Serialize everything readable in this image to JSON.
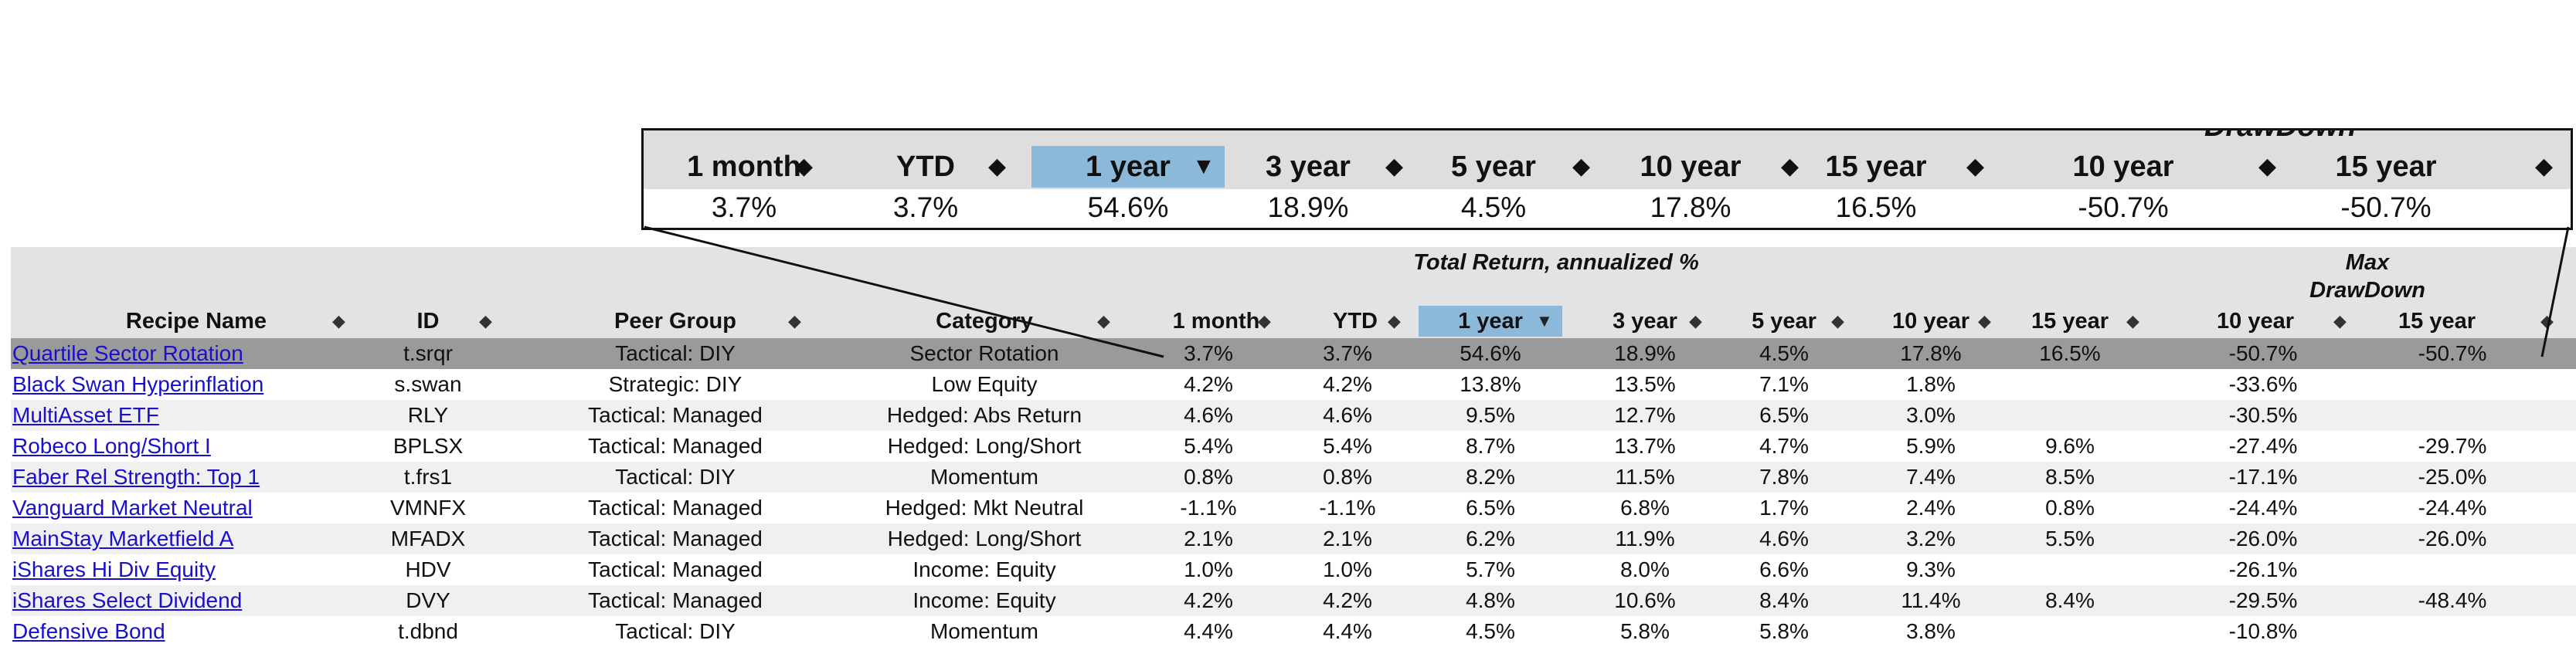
{
  "columns": [
    {
      "key": "name",
      "label": "Recipe Name"
    },
    {
      "key": "id",
      "label": "ID"
    },
    {
      "key": "peer",
      "label": "Peer Group"
    },
    {
      "key": "cat",
      "label": "Category"
    },
    {
      "key": "m1",
      "label": "1 month"
    },
    {
      "key": "ytd",
      "label": "YTD"
    },
    {
      "key": "y1",
      "label": "1 year"
    },
    {
      "key": "y3",
      "label": "3 year"
    },
    {
      "key": "y5",
      "label": "5 year"
    },
    {
      "key": "y10",
      "label": "10 year"
    },
    {
      "key": "y15",
      "label": "15 year"
    },
    {
      "key": "dd10",
      "label": "10 year"
    },
    {
      "key": "dd15",
      "label": "15 year"
    }
  ],
  "groups": {
    "total_return": "Total Return, annualized %",
    "max_drawdown_1": "Max",
    "max_drawdown_2": "DrawDown"
  },
  "sort_icons": {
    "sortable": "sort-both-icon",
    "active": "sort-desc-icon",
    "sortable_glyph": "◆",
    "active_glyph": "▼"
  },
  "colors": {
    "header_bg": "#e3e3e3",
    "active_header": "#8cb9d9",
    "highlight_row": "#9a9a9a",
    "link": "#1a0fcc"
  },
  "rows": [
    {
      "name": "Quartile Sector Rotation",
      "id": "t.srqr",
      "peer": "Tactical: DIY",
      "cat": "Sector Rotation",
      "m1": "3.7%",
      "ytd": "3.7%",
      "y1": "54.6%",
      "y3": "18.9%",
      "y5": "4.5%",
      "y10": "17.8%",
      "y15": "16.5%",
      "dd10": "-50.7%",
      "dd15": "-50.7%"
    },
    {
      "name": "Black Swan Hyperinflation",
      "id": "s.swan",
      "peer": "Strategic: DIY",
      "cat": "Low Equity",
      "m1": "4.2%",
      "ytd": "4.2%",
      "y1": "13.8%",
      "y3": "13.5%",
      "y5": "7.1%",
      "y10": "1.8%",
      "y15": "",
      "dd10": "-33.6%",
      "dd15": ""
    },
    {
      "name": "MultiAsset ETF",
      "id": "RLY",
      "peer": "Tactical: Managed",
      "cat": "Hedged: Abs Return",
      "m1": "4.6%",
      "ytd": "4.6%",
      "y1": "9.5%",
      "y3": "12.7%",
      "y5": "6.5%",
      "y10": "3.0%",
      "y15": "",
      "dd10": "-30.5%",
      "dd15": ""
    },
    {
      "name": "Robeco Long/Short I",
      "id": "BPLSX",
      "peer": "Tactical: Managed",
      "cat": "Hedged: Long/Short",
      "m1": "5.4%",
      "ytd": "5.4%",
      "y1": "8.7%",
      "y3": "13.7%",
      "y5": "4.7%",
      "y10": "5.9%",
      "y15": "9.6%",
      "dd10": "-27.4%",
      "dd15": "-29.7%"
    },
    {
      "name": "Faber Rel Strength: Top 1",
      "id": "t.frs1",
      "peer": "Tactical: DIY",
      "cat": "Momentum",
      "m1": "0.8%",
      "ytd": "0.8%",
      "y1": "8.2%",
      "y3": "11.5%",
      "y5": "7.8%",
      "y10": "7.4%",
      "y15": "8.5%",
      "dd10": "-17.1%",
      "dd15": "-25.0%"
    },
    {
      "name": "Vanguard Market Neutral",
      "id": "VMNFX",
      "peer": "Tactical: Managed",
      "cat": "Hedged: Mkt Neutral",
      "m1": "-1.1%",
      "ytd": "-1.1%",
      "y1": "6.5%",
      "y3": "6.8%",
      "y5": "1.7%",
      "y10": "2.4%",
      "y15": "0.8%",
      "dd10": "-24.4%",
      "dd15": "-24.4%"
    },
    {
      "name": "MainStay Marketfield A",
      "id": "MFADX",
      "peer": "Tactical: Managed",
      "cat": "Hedged: Long/Short",
      "m1": "2.1%",
      "ytd": "2.1%",
      "y1": "6.2%",
      "y3": "11.9%",
      "y5": "4.6%",
      "y10": "3.2%",
      "y15": "5.5%",
      "dd10": "-26.0%",
      "dd15": "-26.0%"
    },
    {
      "name": "iShares Hi Div Equity",
      "id": "HDV",
      "peer": "Tactical: Managed",
      "cat": "Income: Equity",
      "m1": "1.0%",
      "ytd": "1.0%",
      "y1": "5.7%",
      "y3": "8.0%",
      "y5": "6.6%",
      "y10": "9.3%",
      "y15": "",
      "dd10": "-26.1%",
      "dd15": ""
    },
    {
      "name": "iShares Select Dividend",
      "id": "DVY",
      "peer": "Tactical: Managed",
      "cat": "Income: Equity",
      "m1": "4.2%",
      "ytd": "4.2%",
      "y1": "4.8%",
      "y3": "10.6%",
      "y5": "8.4%",
      "y10": "11.4%",
      "y15": "8.4%",
      "dd10": "-29.5%",
      "dd15": "-48.4%"
    },
    {
      "name": "Defensive Bond",
      "id": "t.dbnd",
      "peer": "Tactical: DIY",
      "cat": "Momentum",
      "m1": "4.4%",
      "ytd": "4.4%",
      "y1": "4.5%",
      "y3": "5.8%",
      "y5": "5.8%",
      "y10": "3.8%",
      "y15": "",
      "dd10": "-10.8%",
      "dd15": ""
    }
  ],
  "callout": {
    "labels": [
      "1 month",
      "YTD",
      "1 year",
      "3 year",
      "5 year",
      "10 year",
      "15 year",
      "10 year",
      "15 year"
    ],
    "group_label": "DrawDown",
    "values": [
      "3.7%",
      "3.7%",
      "54.6%",
      "18.9%",
      "4.5%",
      "17.8%",
      "16.5%",
      "-50.7%",
      "-50.7%"
    ]
  }
}
